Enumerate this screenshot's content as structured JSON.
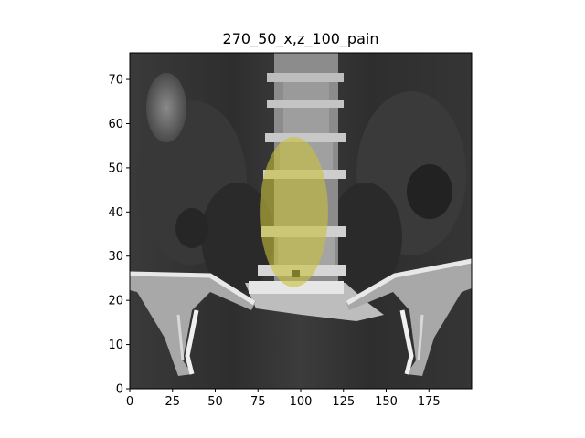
{
  "title": "270_50_x,z_100_pain",
  "chart_data": {
    "type": "image",
    "title": "270_50_x,z_100_pain",
    "xlim": [
      0,
      200
    ],
    "ylim": [
      0,
      76
    ],
    "x_ticks": [
      0,
      25,
      50,
      75,
      100,
      125,
      150,
      175
    ],
    "y_ticks": [
      0,
      10,
      20,
      30,
      40,
      50,
      60,
      70
    ],
    "overlay": {
      "label": "pain region",
      "color": "#c9c23a",
      "center": [
        96,
        40
      ],
      "radius_x": 20,
      "radius_y": 17
    },
    "image_content": "coronal CT slice of lumbar spine and pelvis"
  }
}
